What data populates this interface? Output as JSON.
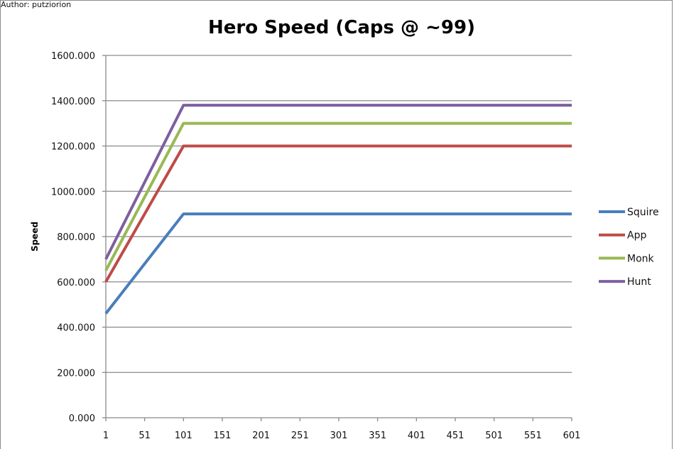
{
  "author": "Author: putziorion",
  "chart_data": {
    "type": "line",
    "title": "Hero Speed (Caps @ ~99)",
    "xlabel": "",
    "ylabel": "Speed",
    "x_ticks": [
      "1",
      "51",
      "101",
      "151",
      "201",
      "251",
      "301",
      "351",
      "401",
      "451",
      "501",
      "551",
      "601"
    ],
    "y_ticks": [
      "0.000",
      "200.000",
      "400.000",
      "600.000",
      "800.000",
      "1000.000",
      "1200.000",
      "1400.000",
      "1600.000"
    ],
    "xlim": [
      1,
      601
    ],
    "ylim": [
      0,
      1600
    ],
    "grid": "horizontal",
    "legend": "right",
    "series": [
      {
        "name": "Squire",
        "color": "#4a7ebb",
        "points": [
          [
            1,
            460
          ],
          [
            101,
            900
          ],
          [
            601,
            900
          ]
        ]
      },
      {
        "name": "App",
        "color": "#be4b48",
        "points": [
          [
            1,
            600
          ],
          [
            101,
            1200
          ],
          [
            601,
            1200
          ]
        ]
      },
      {
        "name": "Monk",
        "color": "#98b954",
        "points": [
          [
            1,
            650
          ],
          [
            101,
            1300
          ],
          [
            601,
            1300
          ]
        ]
      },
      {
        "name": "Hunt",
        "color": "#7d5fa0",
        "points": [
          [
            1,
            700
          ],
          [
            101,
            1380
          ],
          [
            601,
            1380
          ]
        ]
      }
    ]
  }
}
